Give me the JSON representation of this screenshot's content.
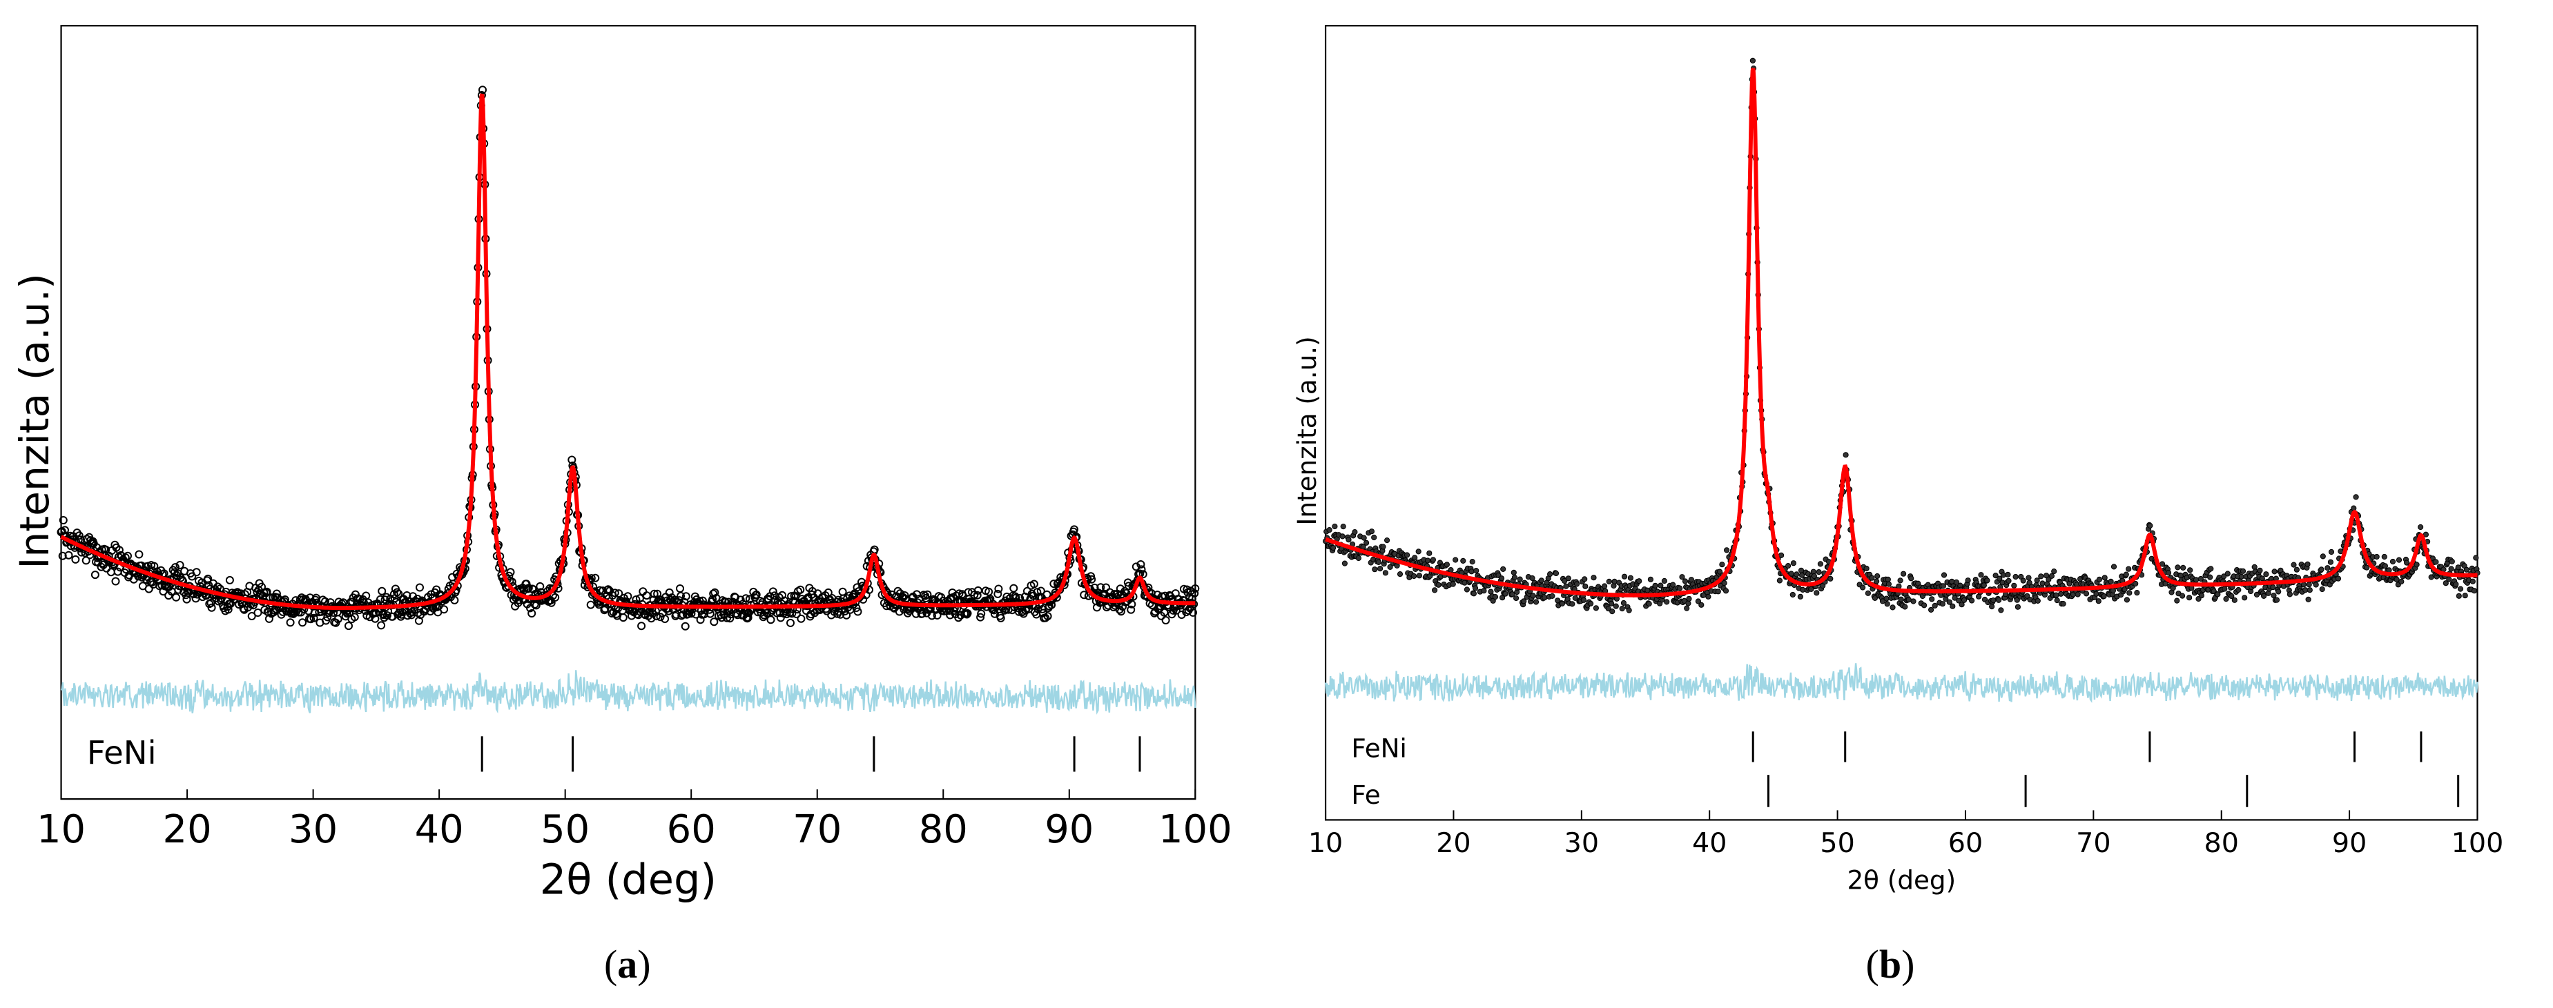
{
  "colors": {
    "observed": "#000000",
    "fit": "#ff0000",
    "difference": "#9fd6e4",
    "phase_ticks": "#000000"
  },
  "chart_data": [
    {
      "panel": "(a)",
      "caption_open": "(",
      "caption_letter": "a",
      "caption_close": ")",
      "type": "scatter",
      "title": "",
      "xlabel": "2θ (deg)",
      "ylabel": "Intenzita (a.u.)",
      "xlim": [
        10,
        100
      ],
      "xticks": [
        10,
        20,
        30,
        40,
        50,
        60,
        70,
        80,
        90,
        100
      ],
      "grid": false,
      "background_at_10": 0.3,
      "background_min": 0.16,
      "background_min_at": 33,
      "background_at_100": 0.17,
      "noise_amplitude": 0.035,
      "peaks": [
        {
          "position": 43.4,
          "height": 1.0,
          "width": 0.45
        },
        {
          "position": 50.6,
          "height": 0.27,
          "width": 0.55
        },
        {
          "position": 74.5,
          "height": 0.1,
          "width": 0.5
        },
        {
          "position": 90.4,
          "height": 0.13,
          "width": 0.6
        },
        {
          "position": 95.6,
          "height": 0.05,
          "width": 0.45
        }
      ],
      "series": [
        {
          "name": "observed",
          "style": "open circles"
        },
        {
          "name": "calculated",
          "style": "red line"
        },
        {
          "name": "difference",
          "style": "light blue line"
        }
      ],
      "phases": [
        {
          "label": "FeNi",
          "positions": [
            43.4,
            50.6,
            74.5,
            90.4,
            95.6
          ]
        }
      ]
    },
    {
      "panel": "(b)",
      "caption_open": "(",
      "caption_letter": "b",
      "caption_close": ")",
      "type": "scatter",
      "title": "",
      "xlabel": "2θ (deg)",
      "ylabel": "Intenzita (a.u.)",
      "xlim": [
        10,
        100
      ],
      "xticks": [
        10,
        20,
        30,
        40,
        50,
        60,
        70,
        80,
        90,
        100
      ],
      "grid": false,
      "background_at_10": 0.29,
      "background_min": 0.18,
      "background_min_at": 36,
      "background_at_100": 0.22,
      "noise_amplitude": 0.035,
      "peaks": [
        {
          "position": 43.4,
          "height": 1.0,
          "width": 0.45
        },
        {
          "position": 44.6,
          "height": 0.07,
          "width": 0.4
        },
        {
          "position": 50.6,
          "height": 0.24,
          "width": 0.55
        },
        {
          "position": 74.4,
          "height": 0.1,
          "width": 0.55
        },
        {
          "position": 90.4,
          "height": 0.13,
          "width": 0.65
        },
        {
          "position": 95.6,
          "height": 0.08,
          "width": 0.5
        }
      ],
      "series": [
        {
          "name": "observed",
          "style": "dots"
        },
        {
          "name": "calculated",
          "style": "red line"
        },
        {
          "name": "difference",
          "style": "light blue line"
        }
      ],
      "phases": [
        {
          "label": "FeNi",
          "positions": [
            43.4,
            50.6,
            74.4,
            90.4,
            95.6
          ]
        },
        {
          "label": "Fe",
          "positions": [
            44.6,
            64.7,
            82.0,
            98.5
          ]
        }
      ]
    }
  ]
}
